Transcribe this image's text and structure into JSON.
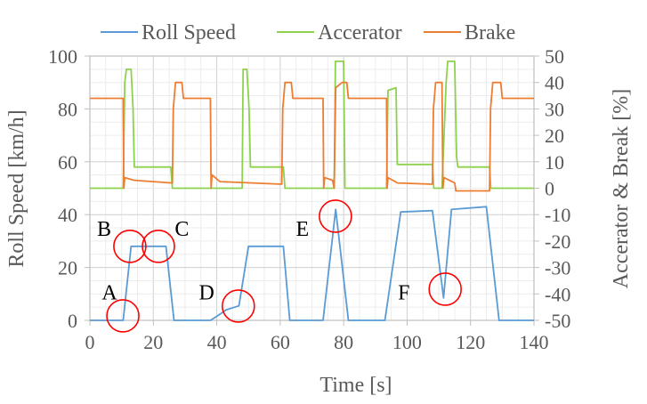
{
  "chart_data": {
    "type": "line",
    "xlabel": "Time  [s]",
    "ylabel": "Roll Speed [km/h]",
    "y2label": "Accerator & Break [%]",
    "xlim": [
      0,
      140
    ],
    "ylim": [
      0,
      100
    ],
    "y2lim": [
      -50,
      50
    ],
    "xticks": [
      0,
      20,
      40,
      60,
      80,
      100,
      120,
      140
    ],
    "yticks": [
      0,
      20,
      40,
      60,
      80,
      100
    ],
    "y2ticks": [
      50,
      40,
      30,
      20,
      10,
      0,
      -10,
      -20,
      -30,
      -40,
      -50
    ],
    "grid": true,
    "legend_position": "top",
    "series": [
      {
        "name": "Roll Speed",
        "axis": "left",
        "color": "#5b9bd5",
        "x": [
          0,
          10.5,
          13,
          24,
          26.5,
          38,
          40,
          43,
          47,
          50,
          61,
          63,
          73.5,
          77.5,
          81.5,
          93,
          98,
          108,
          111.5,
          114,
          125,
          129,
          140
        ],
        "y": [
          0,
          0,
          28,
          28,
          0,
          0,
          1.5,
          4,
          5.5,
          28,
          28,
          0,
          0,
          42,
          0,
          0,
          41,
          41.5,
          8.5,
          42,
          43,
          0,
          0
        ]
      },
      {
        "name": "Accerator",
        "axis": "right",
        "color": "#8ed14d",
        "x": [
          0,
          10.5,
          11,
          11.5,
          13,
          13.6,
          14,
          25.5,
          26,
          48,
          48.3,
          49.5,
          50.2,
          50.6,
          61,
          61.5,
          77,
          77.4,
          80,
          80.4,
          93.5,
          94,
          96.5,
          96.9,
          108,
          108.4,
          111,
          112.3,
          112.8,
          115,
          115.6,
          116,
          126,
          126.4,
          140
        ],
        "y": [
          0,
          0,
          40,
          45,
          45,
          30,
          8,
          8,
          0,
          0,
          45,
          45,
          30,
          8,
          8,
          0,
          0,
          48,
          48,
          0,
          0,
          37,
          38,
          9,
          9,
          0,
          0,
          40,
          48,
          48,
          12,
          8,
          8,
          0,
          0
        ]
      },
      {
        "name": "Brake",
        "axis": "right",
        "color": "#ed7d31",
        "x": [
          0,
          10.5,
          10.7,
          11,
          14,
          26,
          26.3,
          27,
          29,
          29.5,
          38,
          38.2,
          38.5,
          41,
          60.5,
          60.8,
          61.5,
          63.5,
          64,
          73.5,
          73.7,
          74,
          76.5,
          77,
          77.5,
          79.5,
          81,
          81.5,
          93.5,
          93.7,
          94,
          97,
          108,
          108.3,
          109,
          111,
          111.3,
          111.6,
          115,
          115.4,
          126,
          126.3,
          127,
          129.5,
          130,
          140
        ],
        "y": [
          34,
          34,
          0,
          4,
          3,
          2,
          30,
          40,
          40,
          34,
          34,
          0,
          5,
          2.5,
          1.5,
          30,
          40,
          40,
          34,
          34,
          0,
          4,
          3,
          0,
          38,
          40,
          40,
          34,
          34,
          0,
          4,
          2,
          1.5,
          30,
          40,
          40,
          0,
          4,
          2,
          -1,
          -1,
          30,
          40,
          40,
          34,
          34
        ]
      }
    ],
    "annotations": [
      {
        "label": "A",
        "label_x": 6.2,
        "label_y": 11,
        "circle_x": 10.4,
        "circle_y": 1.7
      },
      {
        "label": "B",
        "label_x": 4.5,
        "label_y": 35,
        "circle_x": 12.6,
        "circle_y": 28
      },
      {
        "label": "C",
        "label_x": 29,
        "label_y": 35,
        "circle_x": 21.6,
        "circle_y": 28
      },
      {
        "label": "D",
        "label_x": 36.8,
        "label_y": 11,
        "circle_x": 46.8,
        "circle_y": 5.4
      },
      {
        "label": "E",
        "label_x": 67,
        "label_y": 35,
        "circle_x": 77.4,
        "circle_y": 39.4
      },
      {
        "label": "F",
        "label_x": 99,
        "label_y": 11,
        "circle_x": 112,
        "circle_y": 11.8
      }
    ],
    "annotation_color": "#ff0000"
  }
}
